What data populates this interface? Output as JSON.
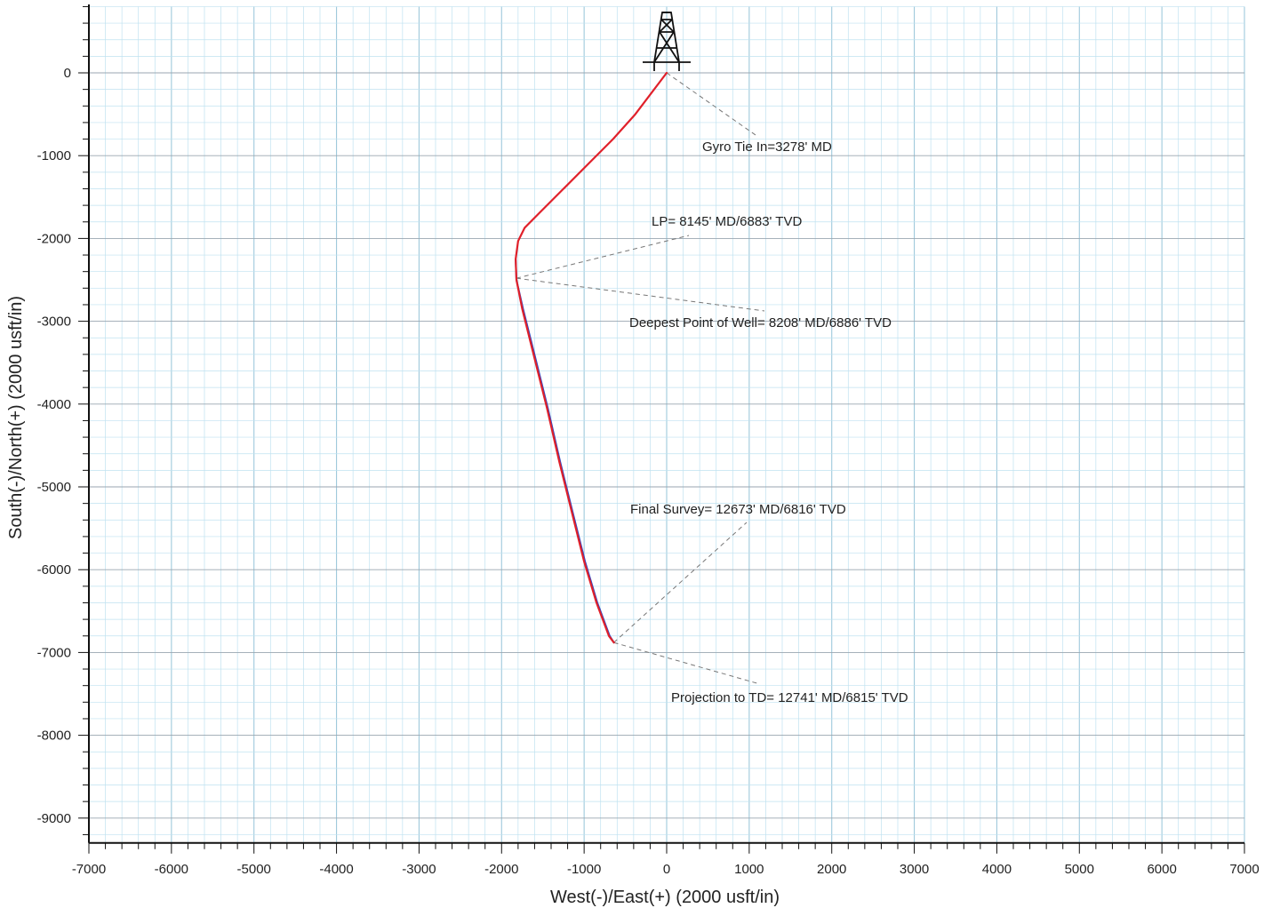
{
  "chart_data": {
    "type": "line",
    "title": "",
    "xlabel": "West(-)/East(+) (2000 usft/in)",
    "ylabel": "South(-)/North(+) (2000 usft/in)",
    "xlim": [
      -7000,
      7000
    ],
    "ylim": [
      -9300,
      800
    ],
    "x_ticks": [
      -7000,
      -6000,
      -5000,
      -4000,
      -3000,
      -2000,
      -1000,
      0,
      1000,
      2000,
      3000,
      4000,
      5000,
      6000,
      7000
    ],
    "y_ticks": [
      0,
      -1000,
      -2000,
      -3000,
      -4000,
      -5000,
      -6000,
      -7000,
      -8000,
      -9000
    ],
    "grid": true,
    "series": [
      {
        "color": "#e0202a",
        "x": [
          0,
          -380,
          -650,
          -950,
          -1250,
          -1550,
          -1720,
          -1800,
          -1830,
          -1820,
          -1750,
          -1600,
          -1450,
          -1300,
          -1150,
          -1000,
          -850,
          -700,
          -640
        ],
        "y": [
          0,
          -500,
          -800,
          -1100,
          -1400,
          -1700,
          -1870,
          -2030,
          -2250,
          -2500,
          -2850,
          -3450,
          -4050,
          -4700,
          -5300,
          -5900,
          -6400,
          -6800,
          -6880
        ]
      },
      {
        "color": "#2b48c8",
        "x": [
          -1830,
          -1820,
          -1740,
          -1590,
          -1440,
          -1290,
          -1140,
          -990,
          -840,
          -690,
          -640
        ],
        "y": [
          -2250,
          -2500,
          -2850,
          -3450,
          -4050,
          -4700,
          -5300,
          -5900,
          -6400,
          -6800,
          -6880
        ]
      }
    ],
    "annotations": [
      {
        "text": "Gyro Tie In=3278' MD",
        "x": 0,
        "y": 0
      },
      {
        "text": "LP= 8145' MD/6883' TVD",
        "x": -1820,
        "y": -2480
      },
      {
        "text": "Deepest Point of Well= 8208' MD/6886' TVD",
        "x": -1820,
        "y": -2480
      },
      {
        "text": "Final Survey= 12673' MD/6816' TVD",
        "x": -640,
        "y": -6880
      },
      {
        "text": "Projection to TD= 12741' MD/6815' TVD",
        "x": -640,
        "y": -6880
      }
    ],
    "markers": [
      {
        "icon": "drilling-rig-icon",
        "x": 0,
        "y": 0
      }
    ]
  },
  "colors": {
    "grid_minor": "#bfe2f0",
    "grid_major": "#9fc9dc",
    "grid_hmajor": "#9aa6b0",
    "survey_line": "#e0202a",
    "plan_line": "#2b48c8",
    "leader": "#777777"
  }
}
